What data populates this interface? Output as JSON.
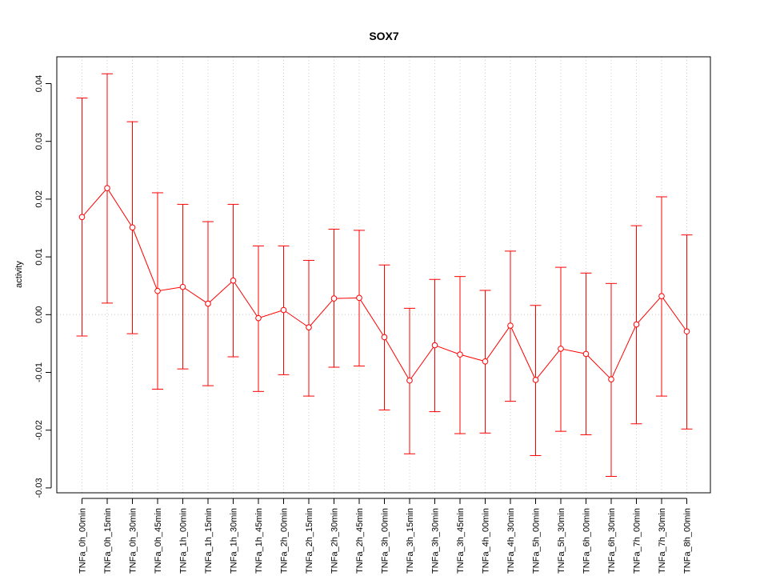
{
  "chart_data": {
    "type": "line",
    "title": "SOX7",
    "xlabel": "",
    "ylabel": "activity",
    "ylim": [
      -0.0305,
      0.0445
    ],
    "yticks": [
      0.04,
      0.03,
      0.02,
      0.01,
      0.0,
      -0.01,
      -0.02,
      -0.03
    ],
    "ytick_labels": [
      "0.04",
      "0.03",
      "0.02",
      "0.01",
      "0.00",
      "-0.01",
      "-0.02",
      "-0.03"
    ],
    "grid": true,
    "reference_line": 0.0,
    "colors": {
      "series": "#ff0000",
      "grid": "#cccccc",
      "axis": "#000000"
    },
    "categories": [
      "TNFa_0h_00min",
      "TNFa_0h_15min",
      "TNFa_0h_30min",
      "TNFa_0h_45min",
      "TNFa_1h_00min",
      "TNFa_1h_15min",
      "TNFa_1h_30min",
      "TNFa_1h_45min",
      "TNFa_2h_00min",
      "TNFa_2h_15min",
      "TNFa_2h_30min",
      "TNFa_2h_45min",
      "TNFa_3h_00min",
      "TNFa_3h_15min",
      "TNFa_3h_30min",
      "TNFa_3h_45min",
      "TNFa_4h_00min",
      "TNFa_4h_30min",
      "TNFa_5h_00min",
      "TNFa_5h_30min",
      "TNFa_6h_00min",
      "TNFa_6h_30min",
      "TNFa_7h_00min",
      "TNFa_7h_30min",
      "TNFa_8h_00min"
    ],
    "series": [
      {
        "values": [
          0.0169,
          0.0219,
          0.0151,
          0.0041,
          0.0048,
          0.0019,
          0.0059,
          -0.0006,
          0.0008,
          -0.0022,
          0.0028,
          0.0029,
          -0.0039,
          -0.0114,
          -0.0053,
          -0.0069,
          -0.0081,
          -0.0019,
          -0.0113,
          -0.0059,
          -0.0068,
          -0.0112,
          -0.0017,
          0.0032,
          -0.0029
        ],
        "upper": [
          0.0375,
          0.0417,
          0.0334,
          0.0211,
          0.0191,
          0.0161,
          0.0191,
          0.0119,
          0.0119,
          0.0094,
          0.0148,
          0.0146,
          0.0086,
          0.0011,
          0.0061,
          0.0066,
          0.0042,
          0.011,
          0.0016,
          0.0082,
          0.0072,
          0.0054,
          0.0154,
          0.0204,
          0.0138
        ],
        "lower": [
          -0.0037,
          0.002,
          -0.0033,
          -0.0129,
          -0.0094,
          -0.0123,
          -0.0073,
          -0.0133,
          -0.0104,
          -0.0141,
          -0.0091,
          -0.0089,
          -0.0165,
          -0.0241,
          -0.0168,
          -0.0206,
          -0.0205,
          -0.015,
          -0.0244,
          -0.0202,
          -0.0208,
          -0.028,
          -0.0189,
          -0.0141,
          -0.0198
        ]
      }
    ]
  }
}
